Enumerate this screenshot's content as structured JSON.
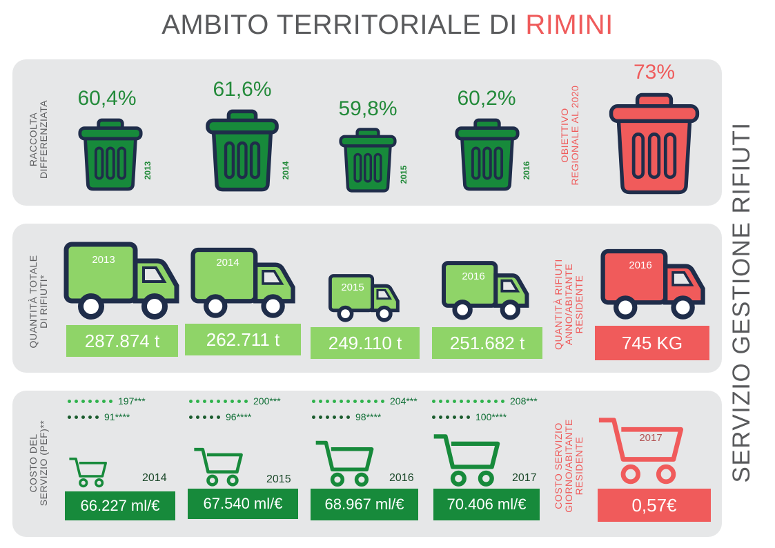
{
  "title": {
    "main": "AMBITO TERRITORIALE DI ",
    "highlight": "RIMINI"
  },
  "side_title": "SERVIZIO GESTIONE RIFIUTI",
  "colors": {
    "accent_red": "#ef5b5b",
    "green_dark": "#178a3b",
    "green_light": "#8fd468",
    "navy_outline": "#1f2d4a",
    "panel_grey": "#e6e7e8"
  },
  "row1": {
    "label": "RACCOLTA\nDIFFERENZIATA",
    "bins": [
      {
        "pct": "60,4%",
        "year": "2013",
        "icon": "trash-bin-icon"
      },
      {
        "pct": "61,6%",
        "year": "2014",
        "icon": "trash-bin-icon"
      },
      {
        "pct": "59,8%",
        "year": "2015",
        "icon": "trash-bin-icon"
      },
      {
        "pct": "60,2%",
        "year": "2016",
        "icon": "trash-bin-icon"
      }
    ],
    "target_label": "OBIETTIVO\nREGIONALE AL 2020",
    "target_pct": "73%"
  },
  "row2": {
    "label": "QUANTITÀ TOTALE\nDI RIFIUTI*",
    "trucks": [
      {
        "year": "2013",
        "value": "287.874 t",
        "icon": "truck-icon"
      },
      {
        "year": "2014",
        "value": "262.711 t",
        "icon": "truck-icon"
      },
      {
        "year": "2015",
        "value": "249.110 t",
        "icon": "truck-icon"
      },
      {
        "year": "2016",
        "value": "251.682 t",
        "icon": "truck-icon"
      }
    ],
    "target_label": "QUANTITÀ RIFIUTI\nANNO/ABITANTE\nRESIDENTE",
    "target_year": "2016",
    "target_value": "745 KG"
  },
  "row3": {
    "label": "COSTO DEL\nSERVIZIO (PEF)**",
    "carts": [
      {
        "upper": "197***",
        "lower": "91****",
        "year": "2014",
        "value": "66.227 ml/€",
        "icon": "shopping-cart-icon"
      },
      {
        "upper": "200***",
        "lower": "96****",
        "year": "2015",
        "value": "67.540 ml/€",
        "icon": "shopping-cart-icon"
      },
      {
        "upper": "204***",
        "lower": "98****",
        "year": "2016",
        "value": "68.967 ml/€",
        "icon": "shopping-cart-icon"
      },
      {
        "upper": "208***",
        "lower": "100****",
        "year": "2017",
        "value": "70.406 ml/€",
        "icon": "shopping-cart-icon"
      }
    ],
    "target_label": "COSTO SERVIZIO\nGIORNO/ABITANTE\nRESIDENTE",
    "target_year": "2017",
    "target_value": "0,57€"
  }
}
